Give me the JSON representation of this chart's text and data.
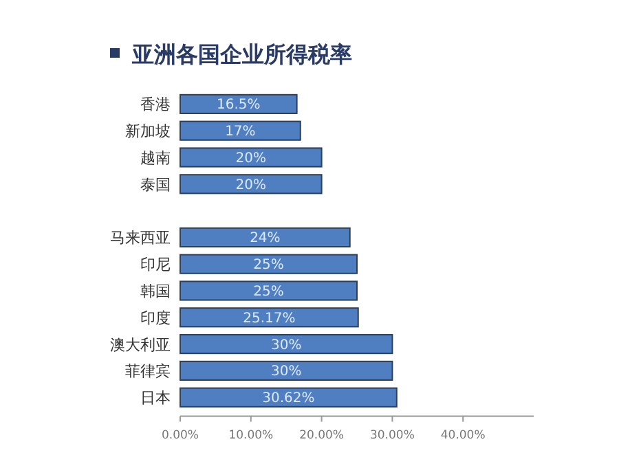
{
  "chart_data": {
    "type": "bar",
    "orientation": "horizontal",
    "title": "亚洲各国企业所得税率",
    "categories": [
      "香港",
      "新加坡",
      "越南",
      "泰国",
      null,
      "马来西亚",
      "印尼",
      "韩国",
      "印度",
      "澳大利亚",
      "菲律宾",
      "日本"
    ],
    "values": [
      16.5,
      17,
      20,
      20,
      null,
      24,
      25,
      25,
      25.17,
      30,
      30,
      30.62
    ],
    "value_labels": [
      "16.5%",
      "17%",
      "20%",
      "20%",
      null,
      "24%",
      "25%",
      "25%",
      "25.17%",
      "30%",
      "30%",
      "30.62%"
    ],
    "color": "#4f7fc0",
    "xlim": [
      0,
      50
    ],
    "xticks": [
      {
        "value": 0,
        "label": "0.00%"
      },
      {
        "value": 10,
        "label": "10.00%"
      },
      {
        "value": 20,
        "label": "20.00%"
      },
      {
        "value": 30,
        "label": "30.00%"
      },
      {
        "value": 40,
        "label": "40.00%"
      }
    ],
    "grid": false
  }
}
